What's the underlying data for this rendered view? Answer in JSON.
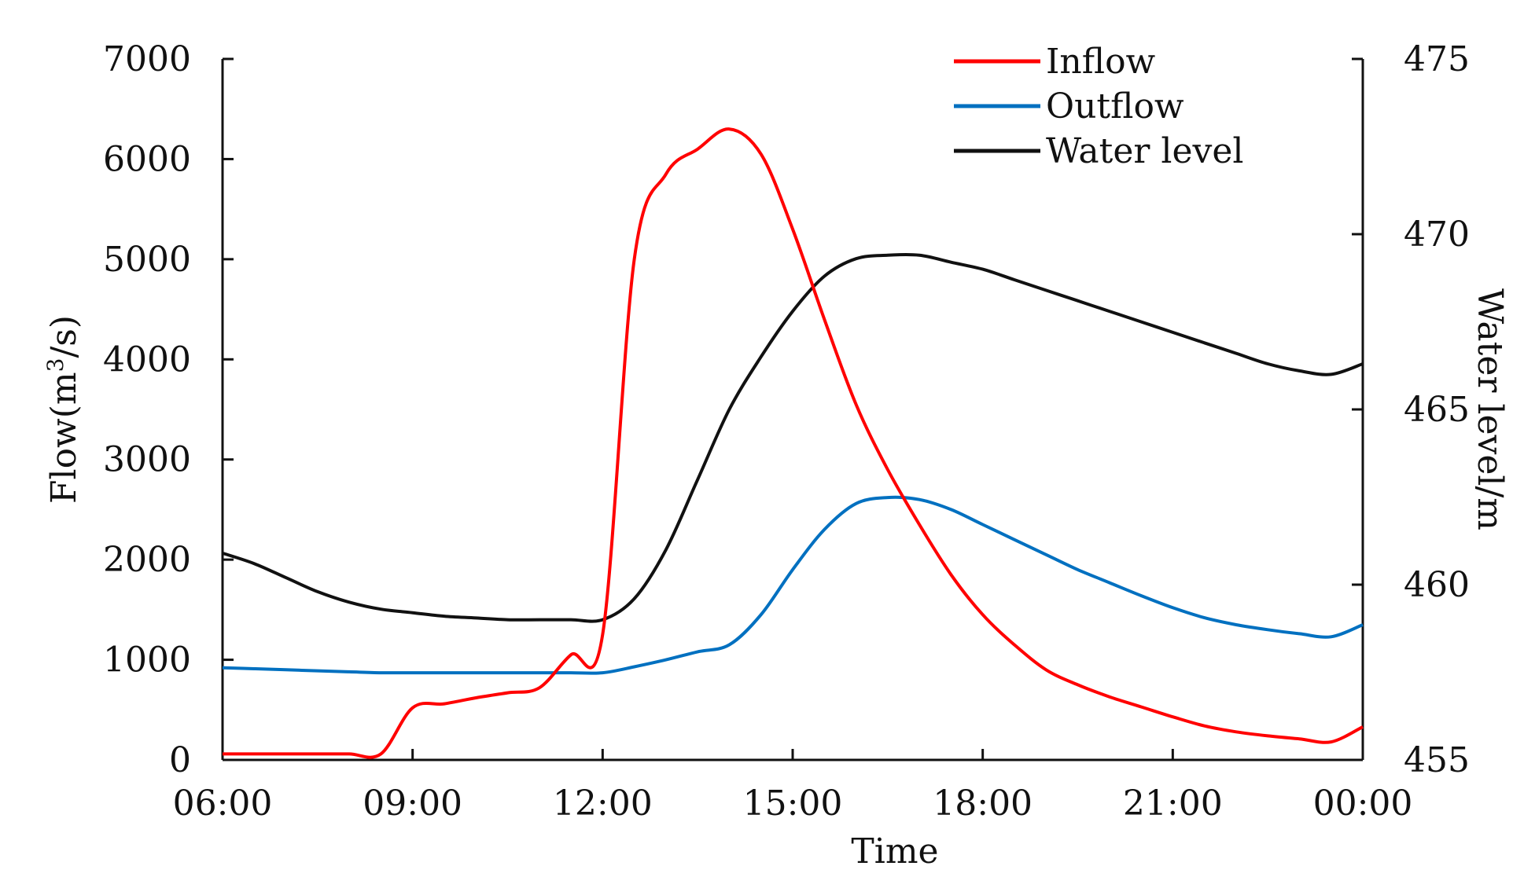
{
  "chart_data": {
    "type": "line",
    "x": [
      "06:00",
      "06:30",
      "07:00",
      "07:30",
      "08:00",
      "08:30",
      "09:00",
      "09:30",
      "10:00",
      "10:30",
      "11:00",
      "11:30",
      "12:00",
      "12:30",
      "13:00",
      "13:30",
      "14:00",
      "14:30",
      "15:00",
      "15:30",
      "16:00",
      "16:30",
      "17:00",
      "17:30",
      "18:00",
      "18:30",
      "19:00",
      "19:30",
      "20:00",
      "20:30",
      "21:00",
      "21:30",
      "22:00",
      "22:30",
      "23:00",
      "23:30",
      "00:00"
    ],
    "series": [
      {
        "name": "Inflow",
        "axis": "left",
        "color": "#ff0000",
        "values": [
          60,
          60,
          60,
          60,
          60,
          60,
          520,
          560,
          620,
          670,
          720,
          1050,
          1250,
          5000,
          5850,
          6100,
          6300,
          6050,
          5300,
          4400,
          3550,
          2900,
          2350,
          1850,
          1450,
          1150,
          900,
          750,
          630,
          530,
          430,
          340,
          280,
          240,
          210,
          180,
          330
        ]
      },
      {
        "name": "Outflow",
        "axis": "left",
        "color": "#0070c0",
        "values": [
          920,
          910,
          900,
          890,
          880,
          870,
          870,
          870,
          870,
          870,
          870,
          870,
          870,
          930,
          1000,
          1080,
          1150,
          1450,
          1900,
          2300,
          2560,
          2620,
          2600,
          2500,
          2350,
          2200,
          2050,
          1900,
          1770,
          1640,
          1520,
          1420,
          1350,
          1300,
          1260,
          1230,
          1350
        ]
      },
      {
        "name": "Water level",
        "axis": "right",
        "color": "#111111",
        "values": [
          460.9,
          460.6,
          460.2,
          459.8,
          459.5,
          459.3,
          459.2,
          459.1,
          459.05,
          459.0,
          459.0,
          459.0,
          459.0,
          459.6,
          461.0,
          463.0,
          465.0,
          466.5,
          467.8,
          468.8,
          469.3,
          469.4,
          469.4,
          469.2,
          469.0,
          468.7,
          468.4,
          468.1,
          467.8,
          467.5,
          467.2,
          466.9,
          466.6,
          466.3,
          466.1,
          466.0,
          466.3
        ]
      }
    ],
    "xlabel": "Time",
    "ylabel": "Flow(m³/s)",
    "ylabel_main": "Flow(m",
    "ylabel_sup": "3",
    "ylabel_tail": "/s)",
    "y2label": "Water level/m",
    "ylim": [
      0,
      7000
    ],
    "y2lim": [
      455,
      475
    ],
    "x_ticks": [
      "06:00",
      "09:00",
      "12:00",
      "15:00",
      "18:00",
      "21:00",
      "00:00"
    ],
    "y_ticks": [
      "0",
      "1000",
      "2000",
      "3000",
      "4000",
      "5000",
      "6000",
      "7000"
    ],
    "y2_ticks": [
      "455",
      "460",
      "465",
      "470",
      "475"
    ],
    "legend": [
      "Inflow",
      "Outflow",
      "Water level"
    ],
    "legend_position": "top-right",
    "grid": false
  }
}
